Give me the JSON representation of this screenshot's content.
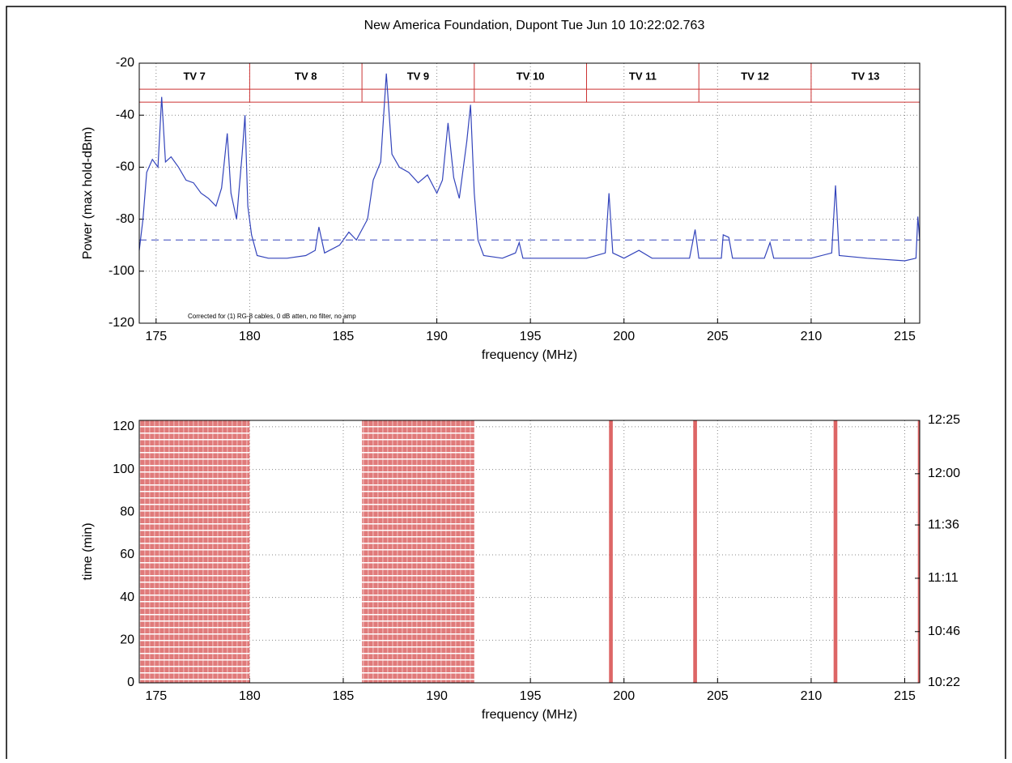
{
  "title": "New America Foundation, Dupont  Tue Jun 10 10:22:02.763",
  "chart_data": [
    {
      "type": "line",
      "xlabel": "frequency (MHz)",
      "ylabel": "Power (max hold-dBm)",
      "xlim": [
        174.1,
        215.8
      ],
      "ylim": [
        -120,
        -20
      ],
      "xticks": [
        175,
        180,
        185,
        190,
        195,
        200,
        205,
        210,
        215
      ],
      "yticks": [
        -120,
        -100,
        -80,
        -60,
        -40,
        -20
      ],
      "grid": true,
      "annotation": "Corrected for (1) RG-8 cables, 0 dB atten, no filter, no amp",
      "channels": {
        "names": [
          "TV 7",
          "TV 8",
          "TV 9",
          "TV 10",
          "TV 11",
          "TV 12",
          "TV 13"
        ],
        "edges": [
          180,
          186,
          192,
          198,
          204,
          210
        ],
        "band_top": -30,
        "band_bottom": -35,
        "color": "#cc3333"
      },
      "threshold": -88,
      "series": [
        {
          "color": "#3344bb",
          "x": [
            174.1,
            174.3,
            174.5,
            174.8,
            175.1,
            175.3,
            175.5,
            175.8,
            176.2,
            176.6,
            177.0,
            177.4,
            177.8,
            178.2,
            178.5,
            178.8,
            179.0,
            179.3,
            179.6,
            179.75,
            179.9,
            180.1,
            180.4,
            181,
            182,
            183,
            183.5,
            183.7,
            184,
            184.8,
            185.3,
            185.7,
            186.3,
            186.6,
            187,
            187.3,
            187.6,
            188,
            188.5,
            189,
            189.5,
            190,
            190.3,
            190.6,
            190.9,
            191.2,
            191.6,
            191.8,
            192,
            192.2,
            192.5,
            193.5,
            194.2,
            194.4,
            194.6,
            196,
            198,
            199,
            199.2,
            199.4,
            200,
            200.8,
            201.5,
            203.5,
            203.8,
            204,
            205.2,
            205.3,
            205.6,
            205.8,
            207.5,
            207.8,
            208,
            210,
            211.1,
            211.3,
            211.5,
            213,
            215,
            215.6,
            215.7,
            215.8
          ],
          "values": [
            -92,
            -80,
            -62,
            -57,
            -60,
            -33,
            -58,
            -56,
            -60,
            -65,
            -66,
            -70,
            -72,
            -75,
            -68,
            -47,
            -70,
            -80,
            -55,
            -40,
            -75,
            -86,
            -94,
            -95,
            -95,
            -94,
            -92,
            -83,
            -93,
            -90,
            -85,
            -88,
            -80,
            -65,
            -58,
            -24,
            -55,
            -60,
            -62,
            -66,
            -63,
            -70,
            -65,
            -43,
            -64,
            -72,
            -50,
            -36,
            -70,
            -88,
            -94,
            -95,
            -93,
            -89,
            -95,
            -95,
            -95,
            -93,
            -70,
            -93,
            -95,
            -92,
            -95,
            -95,
            -84,
            -95,
            -95,
            -86,
            -87,
            -95,
            -95,
            -89,
            -95,
            -95,
            -93,
            -67,
            -94,
            -95,
            -96,
            -95,
            -79,
            -88
          ]
        }
      ]
    },
    {
      "type": "waterfall",
      "xlabel": "frequency (MHz)",
      "ylabel": "time (min)",
      "xlim": [
        174.1,
        215.8
      ],
      "ylim": [
        0,
        123
      ],
      "y2lim": [
        0,
        123
      ],
      "xticks": [
        175,
        180,
        185,
        190,
        195,
        200,
        205,
        210,
        215
      ],
      "yticks": [
        0,
        20,
        40,
        60,
        80,
        100,
        120
      ],
      "y2ticks": [
        {
          "value": 0,
          "label": "10:22"
        },
        {
          "value": 24,
          "label": "10:46"
        },
        {
          "value": 49,
          "label": "11:11"
        },
        {
          "value": 74,
          "label": "11:36"
        },
        {
          "value": 98,
          "label": "12:00"
        },
        {
          "value": 123,
          "label": "12:25"
        }
      ],
      "grid": true,
      "color": "#dd6666",
      "bands": [
        {
          "start": 174.1,
          "end": 180
        },
        {
          "start": 186,
          "end": 192
        },
        {
          "start": 199.2,
          "end": 199.4
        },
        {
          "start": 203.7,
          "end": 203.9
        },
        {
          "start": 211.2,
          "end": 211.4
        },
        {
          "start": 215.7,
          "end": 215.8
        }
      ]
    }
  ]
}
